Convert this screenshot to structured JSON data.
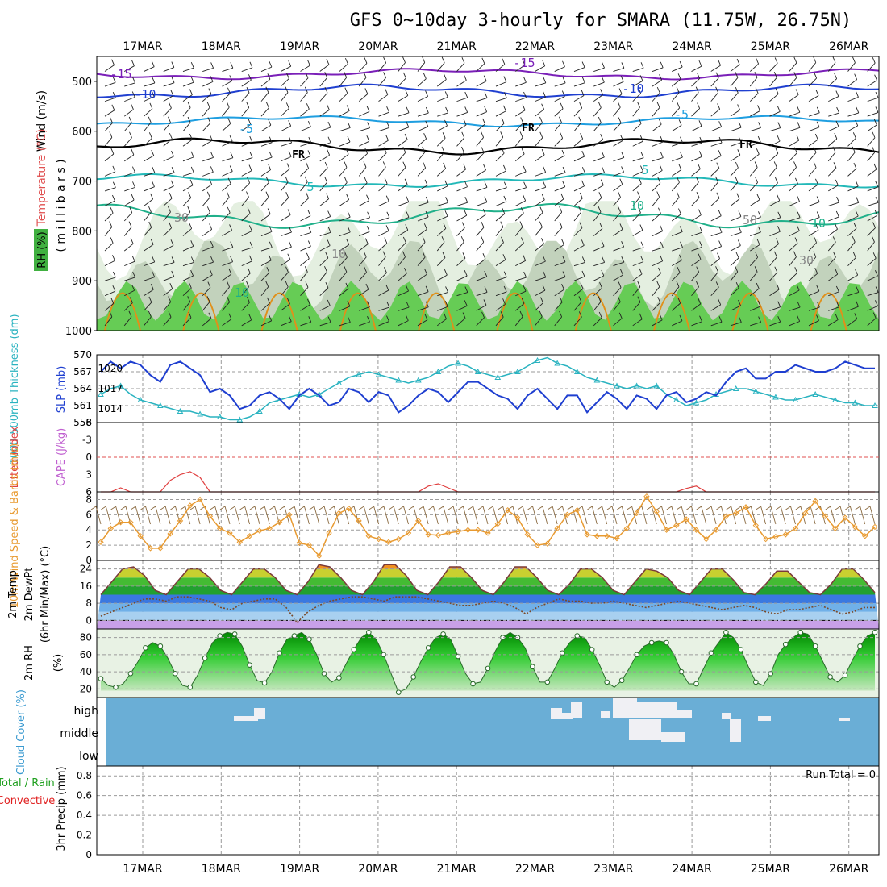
{
  "title": "GFS 0~10day 3-hourly for SMARA (11.75W, 26.75N)",
  "dates": [
    "17MAR",
    "18MAR",
    "19MAR",
    "20MAR",
    "21MAR",
    "22MAR",
    "23MAR",
    "24MAR",
    "25MAR",
    "26MAR"
  ],
  "colors": {
    "grid": "#9a9a9a",
    "purple": "#7a1fb8",
    "blue_dark": "#1f3fd0",
    "blue_light": "#1e9ee0",
    "teal": "#22b8b8",
    "green_line": "#20b08a",
    "orange": "#e0901a",
    "magenta": "#d01890",
    "rh_green": "#66cc55",
    "slp_blue": "#1f3fd0",
    "thick_cyan": "#2ab3c0",
    "cloud_blue": "#6aaed6",
    "wind_orange": "#e89a30"
  },
  "panels": {
    "upper": {
      "ylabel_wind": "Wind (m/s)",
      "ylabel_temp": "Temperature (°C)",
      "ylabel_rh": "RH (%)",
      "ylabel_mb": "( m i l l i b a r s )",
      "yticks": [
        "500",
        "600",
        "700",
        "800",
        "900",
        "1000"
      ],
      "contour_labels": [
        "-15",
        "-15",
        "-10",
        "-10",
        "-5",
        "-5",
        "FR",
        "FR",
        "FR",
        "5",
        "5",
        "10",
        "10",
        "10",
        "30",
        "50",
        "30",
        "10"
      ]
    },
    "slp": {
      "ylabel_thick": "1000-500mb Thickness (dm)",
      "ylabel_slp": "SLP (mb)",
      "left_ticks": [
        "570",
        "567",
        "564",
        "561",
        "558"
      ],
      "right_ticks": [
        "1020",
        "1017",
        "1014"
      ]
    },
    "cape": {
      "ylabel_li": "Lifted Index",
      "ylabel_cape": "CAPE (J/kg)",
      "ticks": [
        "-6",
        "-3",
        "0",
        "3",
        "6"
      ]
    },
    "wind10m": {
      "ylabel": "10m Wind Speed & Barbs (m/s)",
      "ticks": [
        "8",
        "6",
        "4",
        "2",
        "0"
      ]
    },
    "temp2m": {
      "ylabel1": "2m Temp",
      "ylabel2": "2m DewPt",
      "ylabel3": "(6hr Min/Max) (°C)",
      "ticks": [
        "24",
        "16",
        "8",
        "0"
      ]
    },
    "rh2m": {
      "ylabel": "2m RH",
      "unit": "(%)",
      "ticks": [
        "80",
        "60",
        "40",
        "20"
      ]
    },
    "cloud": {
      "ylabel": "Cloud Cover (%)",
      "levels": [
        "high",
        "middle",
        "low"
      ]
    },
    "precip": {
      "ylabel1": "Total / Rain",
      "ylabel2": "Convective",
      "ylabel3": "3hr Precip (mm)",
      "ticks": [
        "0.8",
        "0.6",
        "0.4",
        "0.2",
        "0"
      ],
      "run_total": "Run Total = 0"
    }
  },
  "chart_data": [
    {
      "type": "line",
      "title": "1000-500mb Thickness (dm) / SLP (mb)",
      "series": [
        {
          "name": "SLP (mb)",
          "values": [
            1019.5,
            1021,
            1020,
            1021,
            1020.5,
            1019,
            1018,
            1020.5,
            1021,
            1020,
            1019,
            1016.5,
            1017,
            1016,
            1014,
            1014.5,
            1016,
            1016.5,
            1015.5,
            1014,
            1016,
            1017,
            1016,
            1014.5,
            1015,
            1017,
            1016.5,
            1015,
            1016.5,
            1016,
            1013.5,
            1014.5,
            1016,
            1017,
            1016.5,
            1015,
            1016.5,
            1018,
            1018,
            1017,
            1016,
            1015.5,
            1014,
            1016,
            1017,
            1015.5,
            1014,
            1016,
            1016,
            1013.5,
            1015,
            1016.5,
            1015.5,
            1014,
            1016,
            1015.5,
            1014,
            1016,
            1016.5,
            1015,
            1015.5,
            1016.5,
            1016,
            1018,
            1019.5,
            1020,
            1018.5,
            1018.5,
            1019.5,
            1019.5,
            1020.5,
            1020,
            1019.5,
            1019.5,
            1020,
            1021,
            1020.5,
            1020,
            1020
          ]
        },
        {
          "name": "Thickness (dm)",
          "values": [
            563,
            564,
            564.5,
            563,
            562,
            561.5,
            561,
            560.5,
            560,
            560,
            559.5,
            559,
            559,
            558.5,
            558.5,
            559,
            560,
            561.5,
            562,
            562.5,
            563,
            562.5,
            563,
            564,
            565,
            566,
            566.5,
            567,
            566.5,
            566,
            565.5,
            565,
            565.5,
            566,
            567,
            568,
            568.5,
            568,
            567,
            566.5,
            566,
            566.5,
            567,
            568,
            569,
            569.5,
            568.5,
            568,
            567,
            566,
            565.5,
            565,
            564.5,
            564,
            564.5,
            564,
            564.5,
            563,
            562,
            561,
            561.5,
            562,
            563,
            563.5,
            564,
            564,
            563.5,
            563,
            562.5,
            562,
            562,
            562.5,
            563,
            562.5,
            562,
            561.5,
            561.5,
            561,
            561
          ]
        }
      ],
      "ylim_left": [
        558,
        570
      ],
      "ylim_right": [
        1012,
        1022
      ]
    },
    {
      "type": "line",
      "title": "10m Wind Speed (m/s)",
      "series": [
        {
          "name": "10m Wind Speed",
          "values": [
            2.4,
            4.2,
            5.0,
            5.0,
            3.2,
            1.6,
            1.6,
            3.5,
            5.2,
            7.2,
            8.0,
            5.8,
            4.2,
            3.6,
            2.4,
            3.2,
            3.9,
            4.2,
            5.0,
            6.0,
            2.3,
            2.0,
            0.6,
            3.6,
            6.2,
            6.8,
            5.2,
            3.2,
            2.8,
            2.4,
            2.8,
            3.6,
            5.2,
            3.4,
            3.3,
            3.6,
            3.8,
            4.0,
            4.0,
            3.6,
            4.8,
            6.6,
            5.6,
            3.4,
            2.0,
            2.2,
            4.2,
            6.0,
            6.6,
            3.4,
            3.2,
            3.2,
            2.9,
            4.2,
            6.2,
            8.4,
            6.4,
            4.0,
            4.6,
            5.4,
            4.0,
            2.8,
            4.0,
            5.8,
            6.2,
            7.0,
            4.6,
            2.8,
            3.1,
            3.4,
            4.2,
            6.2,
            7.8,
            5.8,
            4.2,
            5.6,
            4.4,
            3.2,
            4.4
          ]
        }
      ],
      "ylim": [
        0,
        9
      ]
    },
    {
      "type": "area",
      "title": "2m Temp / 2m DewPt (°C)",
      "series": [
        {
          "name": "2m Temp",
          "values": [
            12,
            18,
            24,
            25,
            21,
            14,
            12,
            18,
            24,
            24,
            20,
            14,
            12,
            18,
            24,
            24,
            20,
            14,
            12,
            18,
            26,
            25,
            20,
            14,
            12,
            18,
            26,
            26,
            21,
            14,
            12,
            18,
            25,
            25,
            20,
            14,
            12,
            18,
            25,
            25,
            20,
            14,
            12,
            17,
            24,
            24,
            20,
            14,
            12,
            18,
            24,
            23,
            20,
            14,
            12,
            18,
            24,
            24,
            19,
            13,
            12,
            17,
            23,
            23,
            18,
            13,
            12,
            17,
            24,
            24,
            19,
            13
          ]
        },
        {
          "name": "2m DewPt",
          "values": [
            2,
            4,
            6,
            8,
            10,
            10,
            9,
            11,
            11,
            10,
            9,
            6,
            5,
            8,
            9,
            10,
            10,
            6,
            -1,
            4,
            7,
            9,
            10,
            11,
            11,
            10,
            9,
            11,
            11,
            11,
            10,
            9,
            8,
            7,
            7,
            8,
            9,
            8,
            6,
            3,
            6,
            8,
            10,
            9,
            9,
            8,
            8,
            9,
            8,
            7,
            6,
            7,
            8,
            9,
            8,
            7,
            6,
            5,
            6,
            7,
            6,
            4,
            3,
            5,
            5,
            6,
            7,
            5,
            3,
            4,
            6,
            6
          ]
        }
      ],
      "ylim": [
        -4,
        28
      ]
    },
    {
      "type": "area",
      "title": "2m RH (%)",
      "series": [
        {
          "name": "2m RH",
          "values": [
            32,
            24,
            22,
            26,
            38,
            52,
            68,
            74,
            70,
            56,
            38,
            24,
            22,
            36,
            56,
            74,
            82,
            86,
            84,
            70,
            48,
            30,
            27,
            40,
            62,
            78,
            82,
            86,
            78,
            60,
            38,
            28,
            33,
            50,
            66,
            80,
            86,
            78,
            60,
            38,
            16,
            20,
            34,
            52,
            68,
            80,
            84,
            78,
            58,
            38,
            26,
            28,
            44,
            64,
            80,
            86,
            80,
            68,
            46,
            28,
            28,
            44,
            62,
            74,
            82,
            80,
            66,
            48,
            28,
            22,
            30,
            44,
            60,
            70,
            74,
            76,
            74,
            60,
            40,
            26,
            26,
            44,
            62,
            74,
            86,
            80,
            66,
            46,
            28,
            24,
            38,
            60,
            72,
            80,
            86,
            84,
            70,
            52,
            34,
            28,
            36,
            54,
            70,
            82,
            86
          ]
        }
      ],
      "ylim": [
        10,
        90
      ]
    },
    {
      "type": "line",
      "title": "Lifted Index / CAPE",
      "series": [
        {
          "name": "Lifted Index",
          "values": [
            6,
            6,
            5.3,
            6,
            6,
            6,
            6,
            4,
            3,
            2.5,
            3.5,
            6,
            6,
            6,
            6,
            6,
            6,
            6,
            6,
            6,
            6,
            6,
            6,
            6,
            6,
            6,
            6,
            6,
            6,
            6,
            6,
            6,
            6,
            5,
            4.6,
            5.3,
            6,
            6,
            6,
            6,
            6,
            6,
            6,
            6,
            6,
            6,
            6,
            6,
            6,
            6,
            6,
            6,
            6,
            6,
            6,
            6,
            6,
            6,
            6,
            5.4,
            5,
            6,
            6,
            6,
            6,
            6,
            6,
            6,
            6,
            6,
            6,
            6,
            6,
            6,
            6,
            6,
            6,
            6,
            6
          ]
        }
      ],
      "ylim": [
        -6,
        6
      ]
    },
    {
      "type": "line",
      "title": "3hr Precip (mm)",
      "series": [
        {
          "name": "Total / Rain",
          "values": [
            0,
            0,
            0,
            0,
            0,
            0,
            0,
            0,
            0,
            0
          ]
        }
      ],
      "ylim": [
        0,
        0.9
      ]
    }
  ]
}
